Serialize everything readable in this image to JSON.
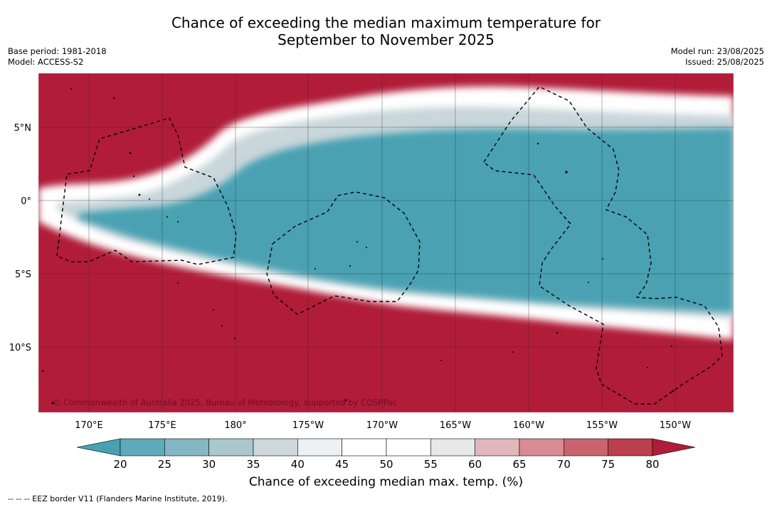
{
  "header": {
    "title_line1": "Chance of exceeding the median maximum temperature for",
    "title_line2": "September to November 2025",
    "base_period": "Base period: 1981-2018",
    "model": "Model: ACCESS-S2",
    "model_run": "Model run: 23/08/2025",
    "issued": "Issued: 25/08/2025"
  },
  "map": {
    "lat_labels": [
      "5°N",
      "0°",
      "5°S",
      "10°S"
    ],
    "lon_labels": [
      "170°E",
      "175°E",
      "180°",
      "175°W",
      "170°W",
      "165°W",
      "160°W",
      "155°W",
      "150°W"
    ],
    "copyright": "© Commonwealth of Australia 2025, Bureau of Meteorology, supported by COSPPac",
    "colors": {
      "hot": "#b11c38",
      "cool": "#48a1b2",
      "neutral": "#ffffff"
    }
  },
  "colorbar": {
    "ticks": [
      "20",
      "25",
      "30",
      "35",
      "40",
      "45",
      "50",
      "55",
      "60",
      "65",
      "70",
      "75",
      "80"
    ],
    "colors": [
      "#5faab9",
      "#85b6c3",
      "#aac7cc",
      "#ced7d9",
      "#eef1f3",
      "#ffffff",
      "#ffffff",
      "#e8e8e8",
      "#e1b7bc",
      "#d78c94",
      "#c9646e",
      "#bb3f4d"
    ],
    "under_color": "#48a1b2",
    "over_color": "#b11c38",
    "label": "Chance of exceeding median max. temp. (%)"
  },
  "footnote": "--  --  -- EEZ border V11 (Flanders Marine Institute, 2019)."
}
